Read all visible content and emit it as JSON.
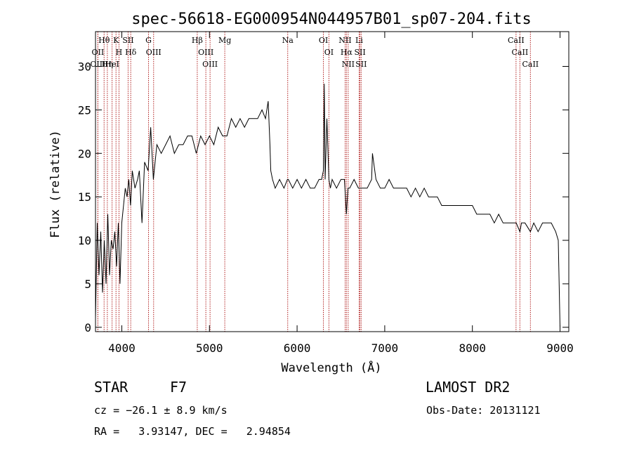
{
  "chart_data": {
    "type": "line",
    "title": "spec-56618-EG000954N044957B01_sp07-204.fits",
    "xlabel": "Wavelength (Å)",
    "ylabel": "Flux (relative)",
    "xlim": [
      3700,
      9100
    ],
    "ylim": [
      -0.5,
      34
    ],
    "xticks": [
      4000,
      5000,
      6000,
      7000,
      8000,
      9000
    ],
    "yticks": [
      0,
      5,
      10,
      15,
      20,
      25,
      30
    ],
    "grid": false,
    "line_color": "#000000",
    "marker_color": "#b22222",
    "series": [
      {
        "x": [
          3700,
          3720,
          3740,
          3760,
          3780,
          3800,
          3820,
          3840,
          3860,
          3880,
          3900,
          3920,
          3940,
          3960,
          3980,
          4000,
          4020,
          4040,
          4060,
          4080,
          4100,
          4120,
          4150,
          4180,
          4200,
          4230,
          4260,
          4300,
          4330,
          4360,
          4400,
          4450,
          4500,
          4550,
          4600,
          4650,
          4700,
          4750,
          4800,
          4850,
          4900,
          4950,
          5000,
          5050,
          5100,
          5150,
          5200,
          5250,
          5300,
          5350,
          5400,
          5450,
          5500,
          5550,
          5600,
          5640,
          5670,
          5690,
          5700,
          5720,
          5750,
          5800,
          5850,
          5890,
          5900,
          5950,
          6000,
          6050,
          6100,
          6150,
          6200,
          6250,
          6280,
          6300,
          6310,
          6320,
          6340,
          6363,
          6380,
          6400,
          6450,
          6500,
          6540,
          6563,
          6580,
          6600,
          6650,
          6700,
          6750,
          6800,
          6850,
          6860,
          6900,
          6950,
          7000,
          7050,
          7100,
          7150,
          7200,
          7250,
          7300,
          7350,
          7400,
          7450,
          7500,
          7550,
          7600,
          7650,
          7700,
          7750,
          7800,
          7850,
          7900,
          7950,
          8000,
          8050,
          8100,
          8150,
          8200,
          8250,
          8300,
          8350,
          8400,
          8450,
          8500,
          8542,
          8560,
          8600,
          8662,
          8700,
          8750,
          8800,
          8850,
          8900,
          8950,
          8980,
          9000
        ],
        "y": [
          1,
          12,
          6,
          11,
          4,
          10,
          5,
          13,
          6,
          10,
          9,
          11,
          7,
          12,
          5,
          12,
          14,
          16,
          15,
          17,
          14,
          18,
          16,
          17,
          18,
          12,
          19,
          18,
          23,
          17,
          21,
          20,
          21,
          22,
          20,
          21,
          21,
          22,
          22,
          20,
          22,
          21,
          22,
          21,
          23,
          22,
          22,
          24,
          23,
          24,
          23,
          24,
          24,
          24,
          25,
          24,
          26,
          21,
          18,
          17,
          16,
          17,
          16,
          17,
          17,
          16,
          17,
          16,
          17,
          16,
          16,
          17,
          17,
          18,
          28,
          17,
          24,
          17,
          16,
          17,
          16,
          17,
          17,
          13,
          16,
          16,
          17,
          16,
          16,
          16,
          17,
          20,
          17,
          16,
          16,
          17,
          16,
          16,
          16,
          16,
          15,
          16,
          15,
          16,
          15,
          15,
          15,
          14,
          14,
          14,
          14,
          14,
          14,
          14,
          14,
          13,
          13,
          13,
          13,
          12,
          13,
          12,
          12,
          12,
          12,
          11,
          12,
          12,
          11,
          12,
          11,
          12,
          12,
          12,
          11,
          10,
          0
        ]
      }
    ],
    "spectral_lines": [
      {
        "label": "Hθ",
        "wavelength": 3798
      },
      {
        "label": "OII",
        "wavelength": 3727
      },
      {
        "label": "OIII",
        "wavelength": 3727
      },
      {
        "label": "HeI",
        "wavelength": 3889
      },
      {
        "label": "Hη",
        "wavelength": 3835
      },
      {
        "label": "K",
        "wavelength": 3934
      },
      {
        "label": "H",
        "wavelength": 3968
      },
      {
        "label": "SII",
        "wavelength": 4072
      },
      {
        "label": "Hδ",
        "wavelength": 4102
      },
      {
        "label": "G",
        "wavelength": 4305
      },
      {
        "label": "OIII",
        "wavelength": 4363
      },
      {
        "label": "Hβ",
        "wavelength": 4861
      },
      {
        "label": "OIII",
        "wavelength": 4959
      },
      {
        "label": "OIII",
        "wavelength": 5007
      },
      {
        "label": "Mg",
        "wavelength": 5175
      },
      {
        "label": "Na",
        "wavelength": 5893
      },
      {
        "label": "OI",
        "wavelength": 6300
      },
      {
        "label": "OI",
        "wavelength": 6363
      },
      {
        "label": "NII",
        "wavelength": 6548
      },
      {
        "label": "Hα",
        "wavelength": 6563
      },
      {
        "label": "NII",
        "wavelength": 6583
      },
      {
        "label": "Li",
        "wavelength": 6708
      },
      {
        "label": "SII",
        "wavelength": 6717
      },
      {
        "label": "SII",
        "wavelength": 6731
      },
      {
        "label": "CaII",
        "wavelength": 8498
      },
      {
        "label": "CaII",
        "wavelength": 8542
      },
      {
        "label": "CaII",
        "wavelength": 8662
      }
    ]
  },
  "footer": {
    "class": "STAR",
    "subclass": "F7",
    "survey": "LAMOST DR2",
    "cz": "cz = −26.1 ± 8.9 km/s",
    "obs_date": "Obs-Date: 20131121",
    "coords": "RA =   3.93147, DEC =   2.94854"
  }
}
